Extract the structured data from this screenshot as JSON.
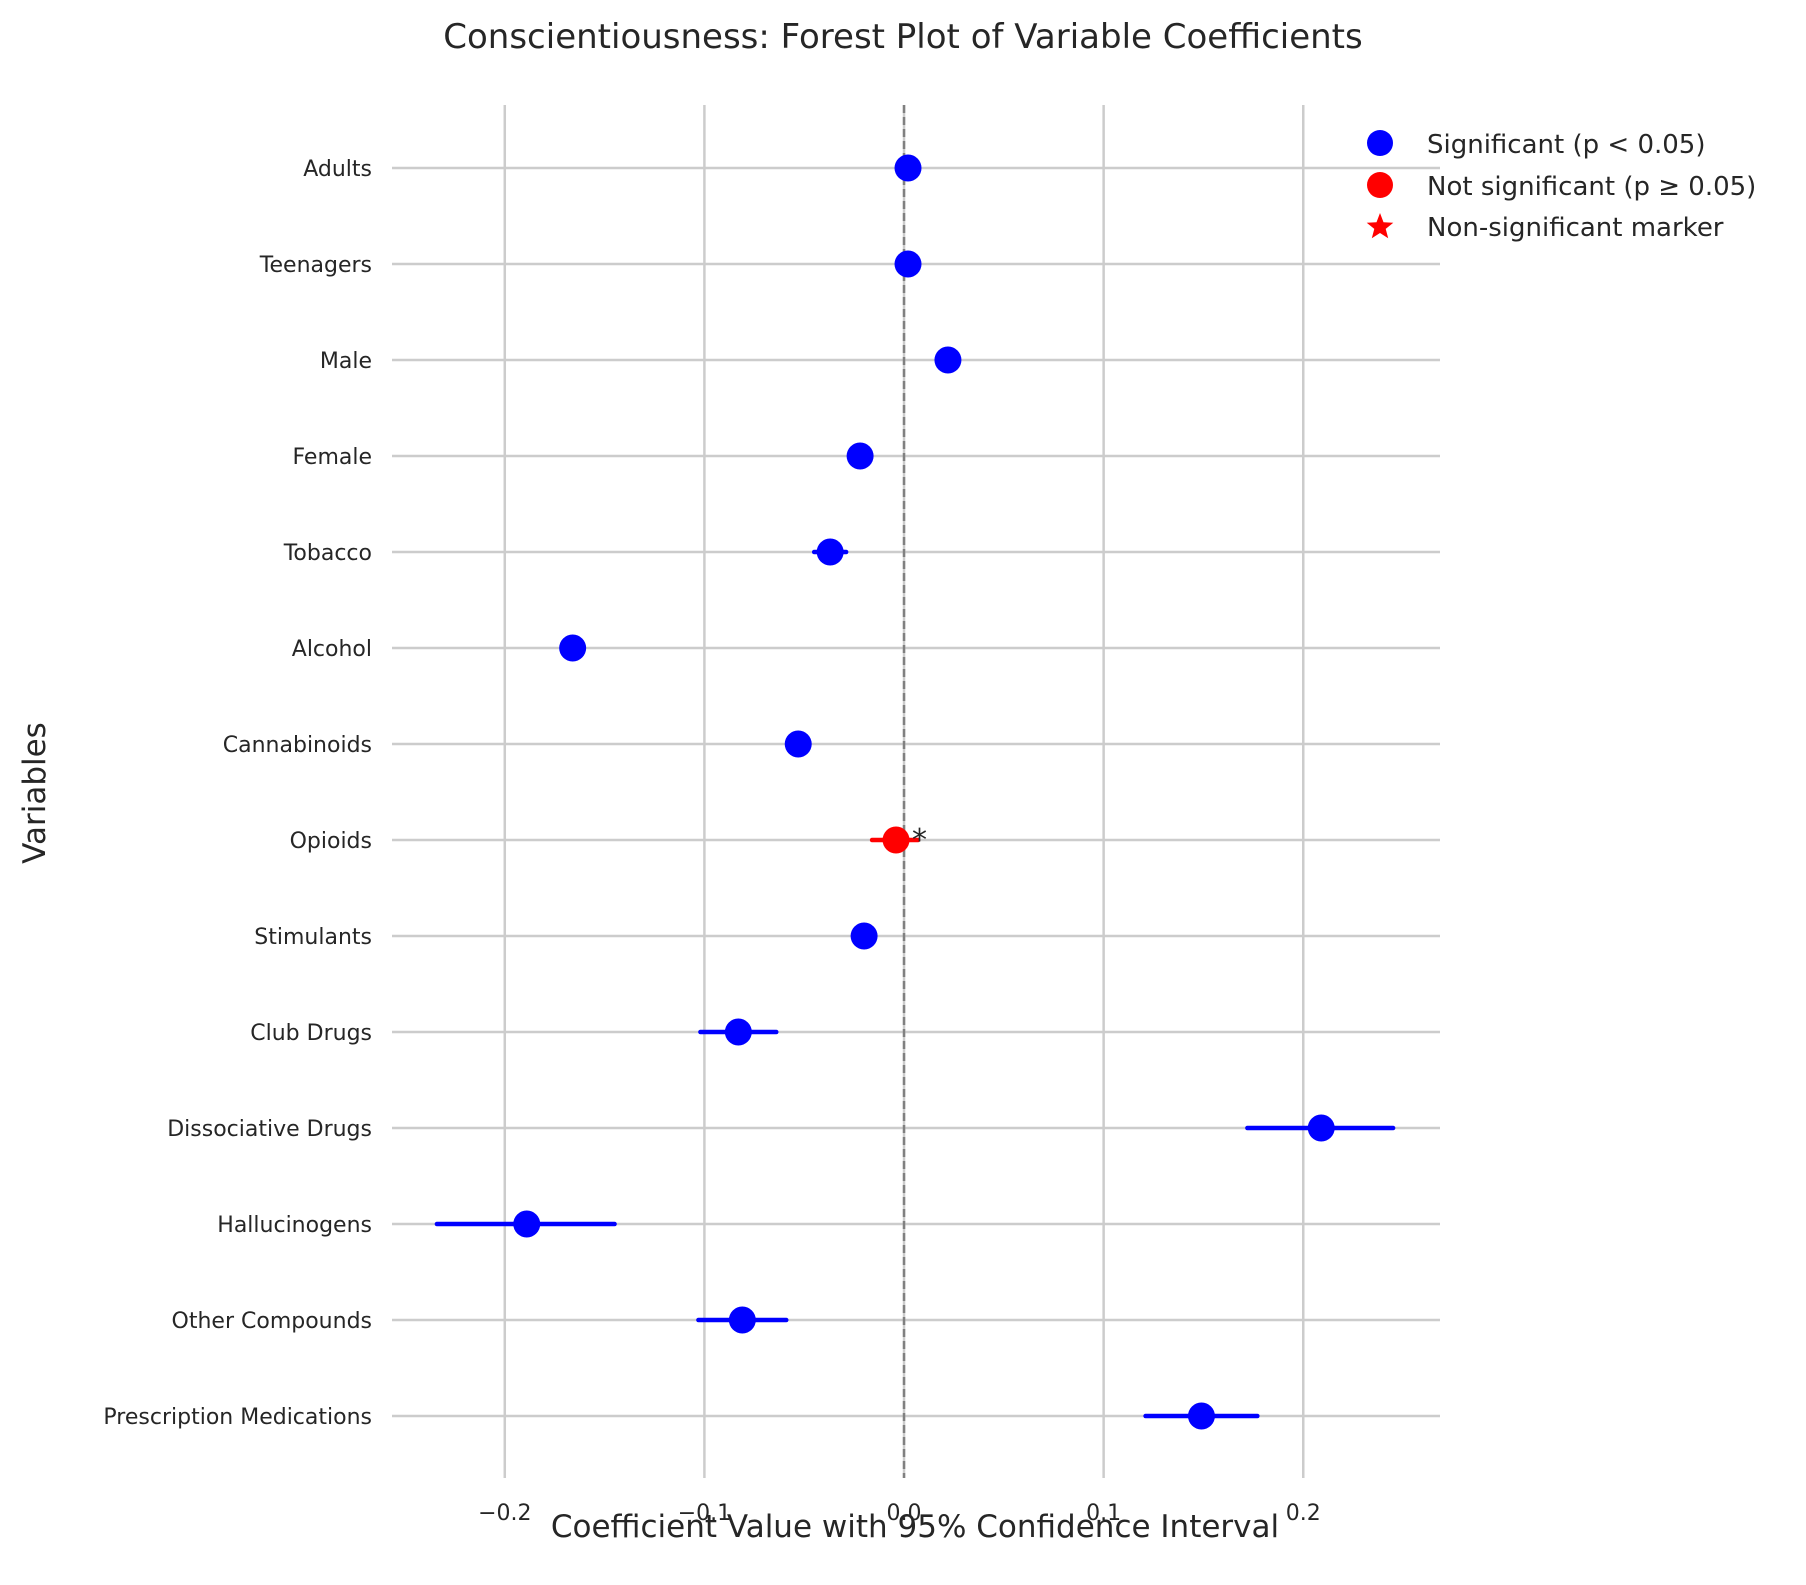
{
  "chart_data": {
    "type": "scatter",
    "title": "Conscientiousness: Forest Plot of Variable Coefficients",
    "xlabel": "Coefficient Value with 95% Confidence Interval",
    "ylabel": "Variables",
    "xlim": [
      -0.2565,
      0.2685
    ],
    "xticks": [
      -0.2,
      -0.1,
      0.0,
      0.1,
      0.2
    ],
    "xtick_labels": [
      "−0.2",
      "−0.1",
      "0.0",
      "0.1",
      "0.2"
    ],
    "grid": true,
    "reference_line": 0.0,
    "legend_position": "top-right",
    "legend": [
      {
        "label": "Significant (p < 0.05)",
        "marker": "circle",
        "color": "#0000ff"
      },
      {
        "label": "Not significant (p ≥ 0.05)",
        "marker": "circle",
        "color": "#ff0000"
      },
      {
        "label": "Non-significant marker",
        "marker": "star",
        "color": "#ff0000"
      }
    ],
    "colors": {
      "significant": "#0000ff",
      "not_significant": "#ff0000",
      "grid": "#cccccc",
      "zero_line": "#808080"
    },
    "annotation_text": "*",
    "rows": [
      {
        "variable": "Adults",
        "coef": 0.002,
        "ci_low": 0.001,
        "ci_high": 0.003,
        "significant": true
      },
      {
        "variable": "Teenagers",
        "coef": 0.002,
        "ci_low": 0.001,
        "ci_high": 0.003,
        "significant": true
      },
      {
        "variable": "Male",
        "coef": 0.022,
        "ci_low": 0.021,
        "ci_high": 0.023,
        "significant": true
      },
      {
        "variable": "Female",
        "coef": -0.022,
        "ci_low": -0.023,
        "ci_high": -0.021,
        "significant": true
      },
      {
        "variable": "Tobacco",
        "coef": -0.037,
        "ci_low": -0.045,
        "ci_high": -0.029,
        "significant": true
      },
      {
        "variable": "Alcohol",
        "coef": -0.166,
        "ci_low": -0.167,
        "ci_high": -0.165,
        "significant": true
      },
      {
        "variable": "Cannabinoids",
        "coef": -0.053,
        "ci_low": -0.054,
        "ci_high": -0.052,
        "significant": true
      },
      {
        "variable": "Opioids",
        "coef": -0.004,
        "ci_low": -0.016,
        "ci_high": 0.007,
        "significant": false
      },
      {
        "variable": "Stimulants",
        "coef": -0.02,
        "ci_low": -0.021,
        "ci_high": -0.019,
        "significant": true
      },
      {
        "variable": "Club Drugs",
        "coef": -0.083,
        "ci_low": -0.102,
        "ci_high": -0.064,
        "significant": true
      },
      {
        "variable": "Dissociative Drugs",
        "coef": 0.209,
        "ci_low": 0.172,
        "ci_high": 0.245,
        "significant": true
      },
      {
        "variable": "Hallucinogens",
        "coef": -0.189,
        "ci_low": -0.234,
        "ci_high": -0.145,
        "significant": true
      },
      {
        "variable": "Other Compounds",
        "coef": -0.081,
        "ci_low": -0.103,
        "ci_high": -0.059,
        "significant": true
      },
      {
        "variable": "Prescription Medications",
        "coef": 0.149,
        "ci_low": 0.121,
        "ci_high": 0.177,
        "significant": true
      }
    ]
  }
}
